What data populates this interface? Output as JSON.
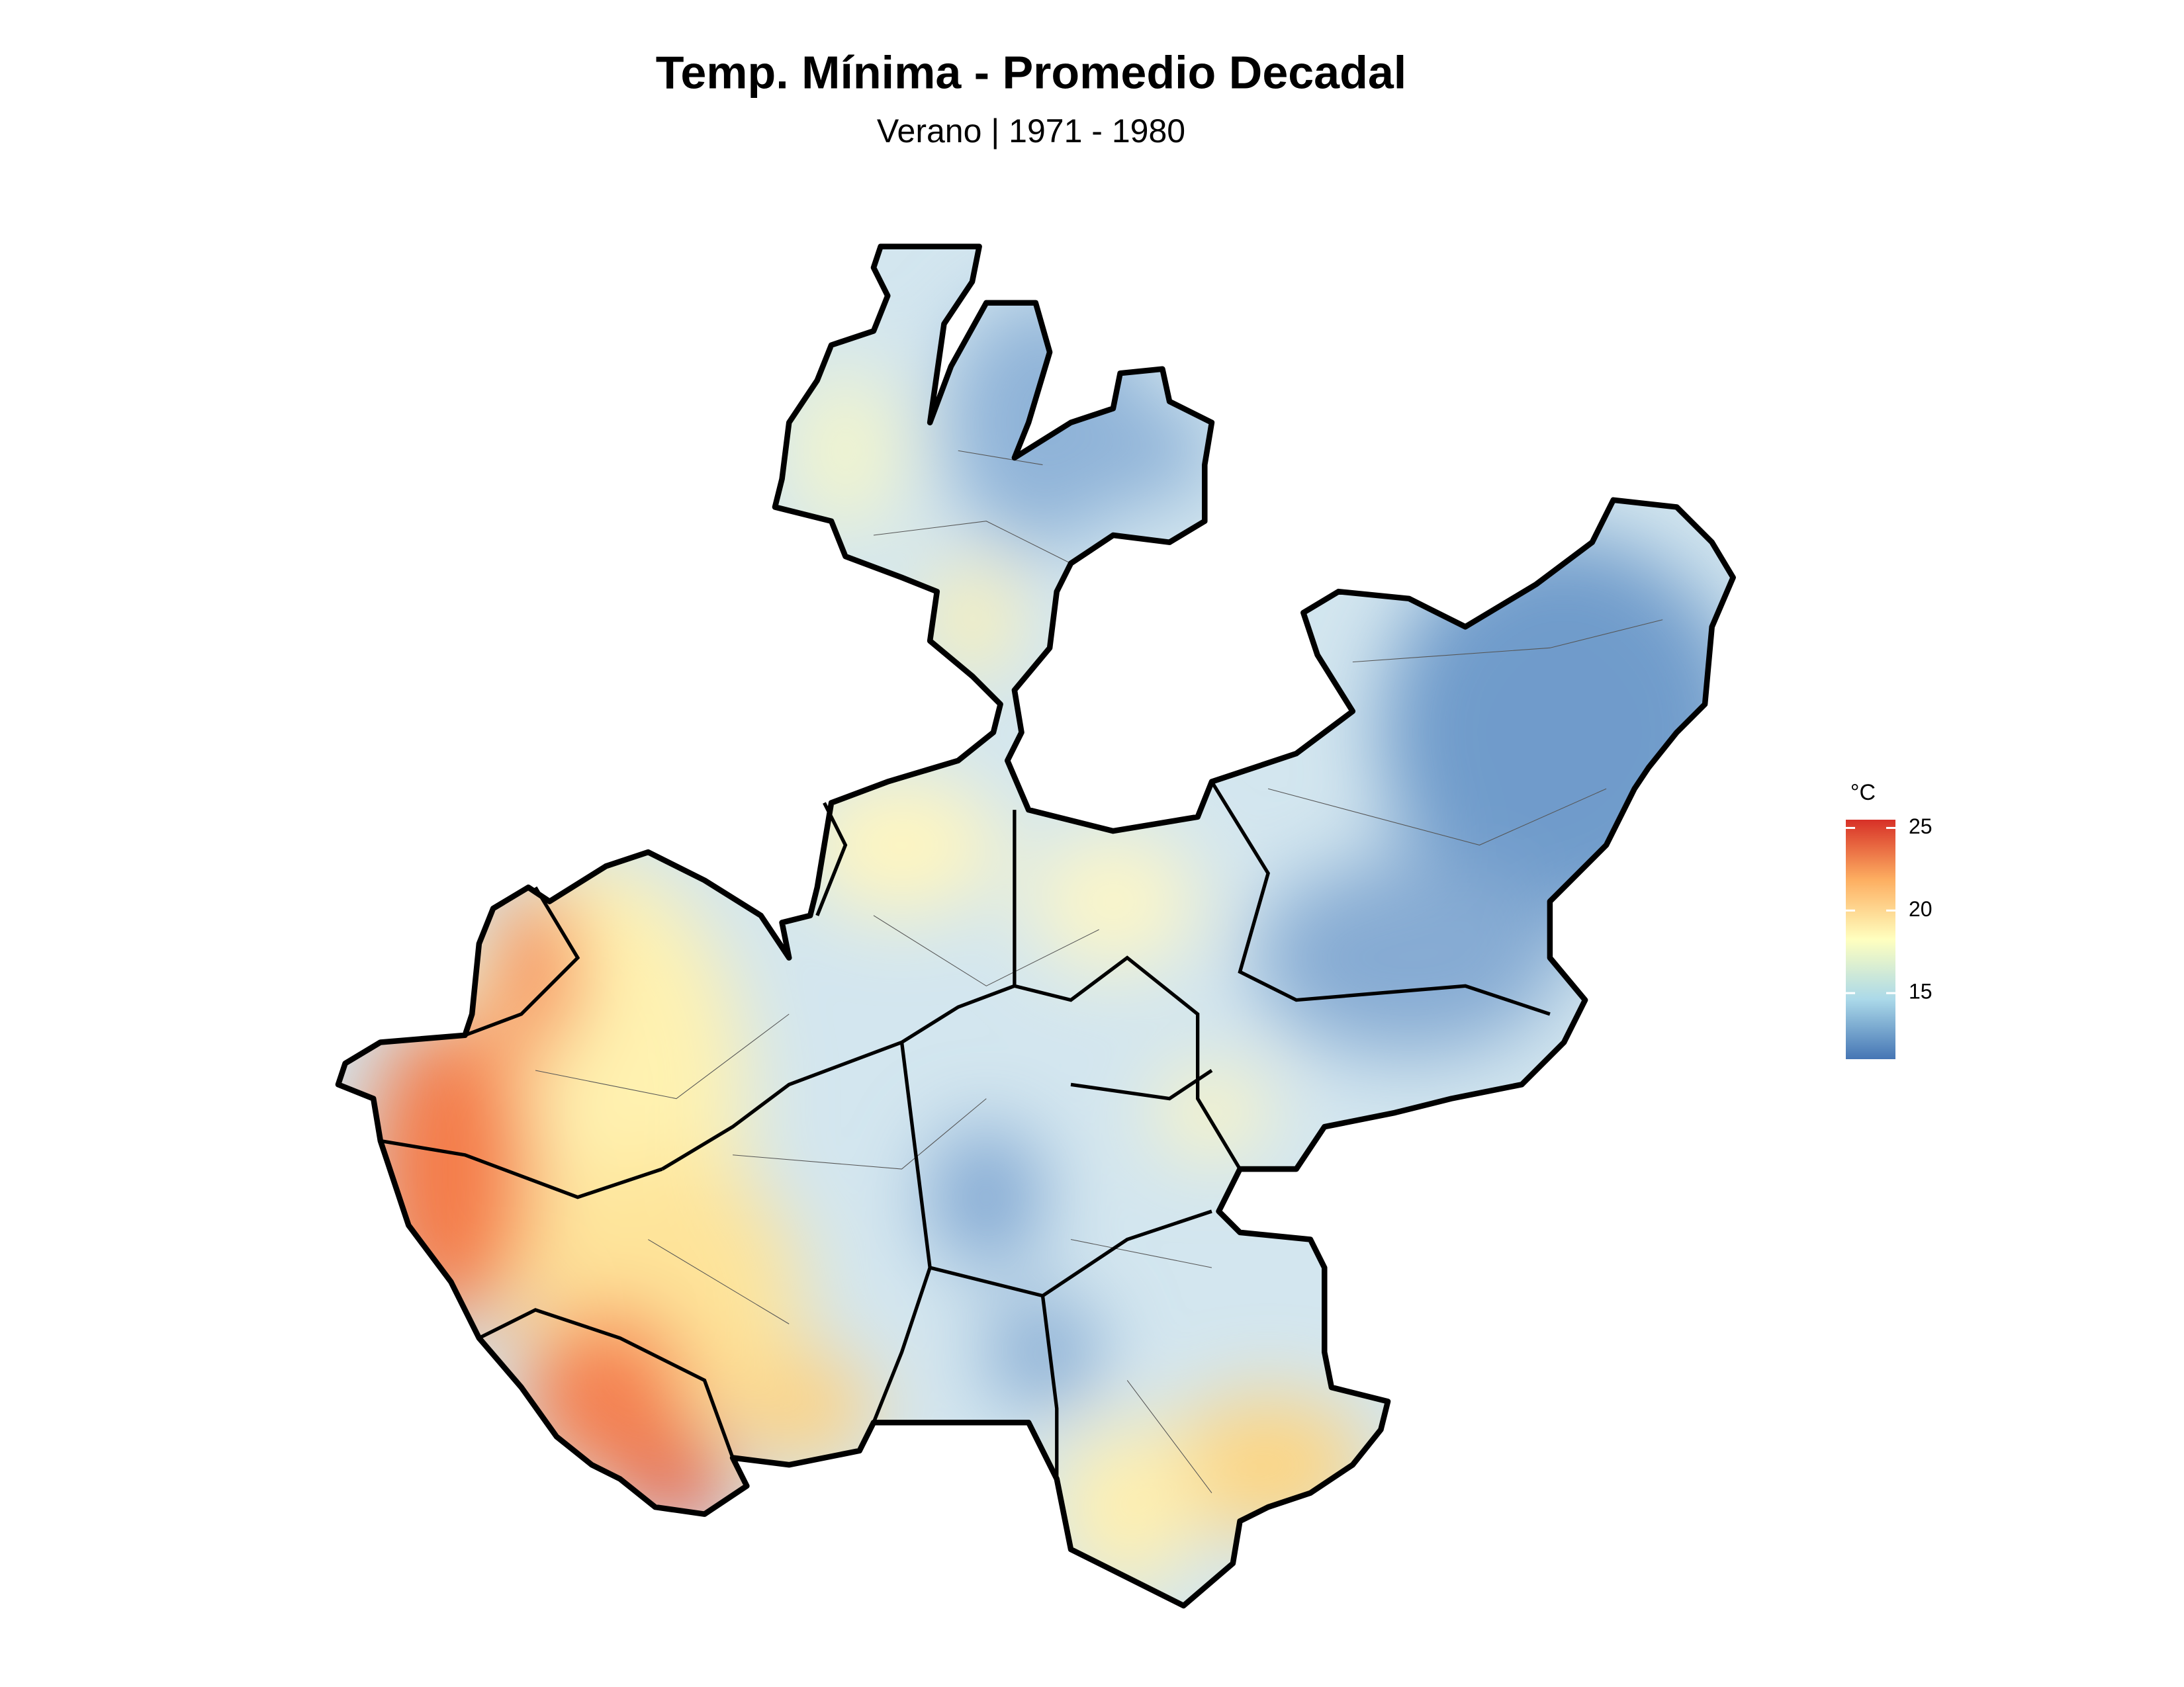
{
  "title": "Temp. Mínima - Promedio Decadal",
  "subtitle": "Verano | 1971 - 1980",
  "legend": {
    "title": "°C",
    "limits": [
      11,
      25.5
    ],
    "ticks": [
      15,
      20,
      25
    ],
    "colors": [
      "#4575b4",
      "#abd9e9",
      "#ffffbf",
      "#fdae61",
      "#d73027"
    ]
  }
}
